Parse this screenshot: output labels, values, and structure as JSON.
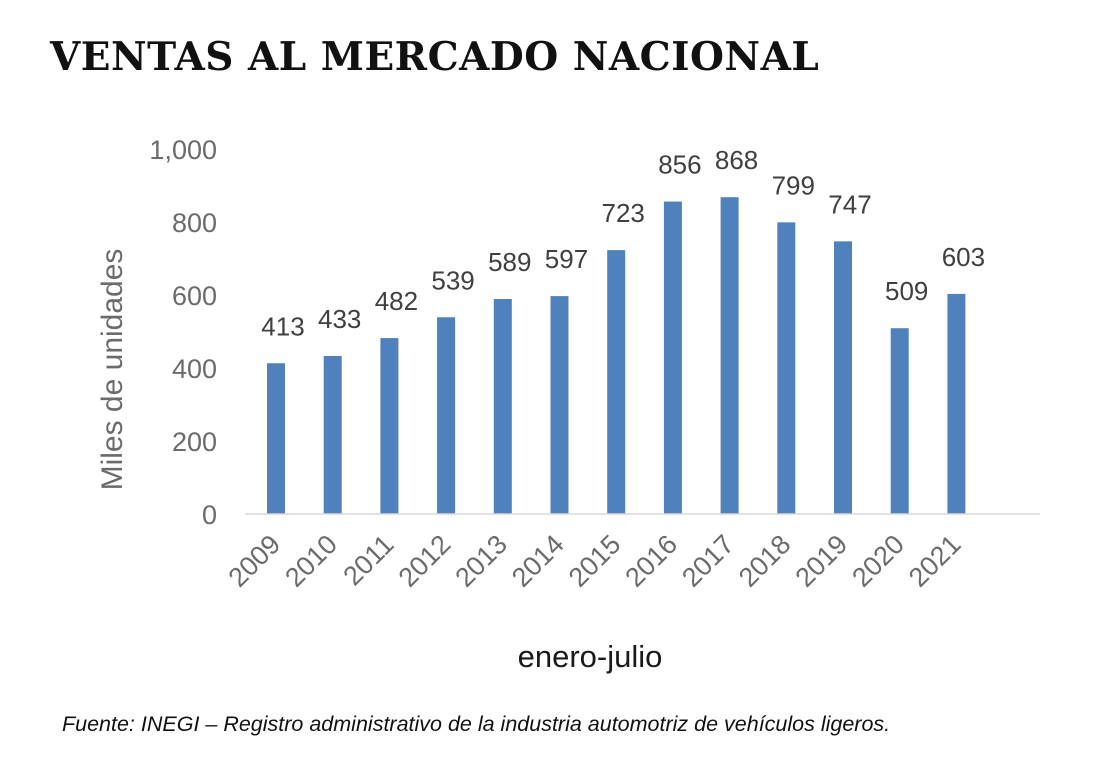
{
  "header": {
    "title": "VENTAS AL MERCADO NACIONAL"
  },
  "footer": {
    "source": "Fuente: INEGI – Registro administrativo de la industria automotriz de vehículos ligeros."
  },
  "chart_data": {
    "type": "bar",
    "title": "VENTAS AL MERCADO NACIONAL",
    "xlabel": "enero-julio",
    "ylabel": "Miles de unidades",
    "ylim": [
      0,
      1000
    ],
    "yticks": [
      0,
      200,
      400,
      600,
      800,
      1000
    ],
    "ytick_labels": [
      "0",
      "200",
      "400",
      "600",
      "800",
      "1,000"
    ],
    "categories": [
      "2009",
      "2010",
      "2011",
      "2012",
      "2013",
      "2014",
      "2015",
      "2016",
      "2017",
      "2018",
      "2019",
      "2020",
      "2021"
    ],
    "values": [
      413,
      433,
      482,
      539,
      589,
      597,
      723,
      856,
      868,
      799,
      747,
      509,
      603
    ],
    "bar_color": "#4f81bd",
    "data_labels": true,
    "grid": false,
    "legend": "none"
  }
}
